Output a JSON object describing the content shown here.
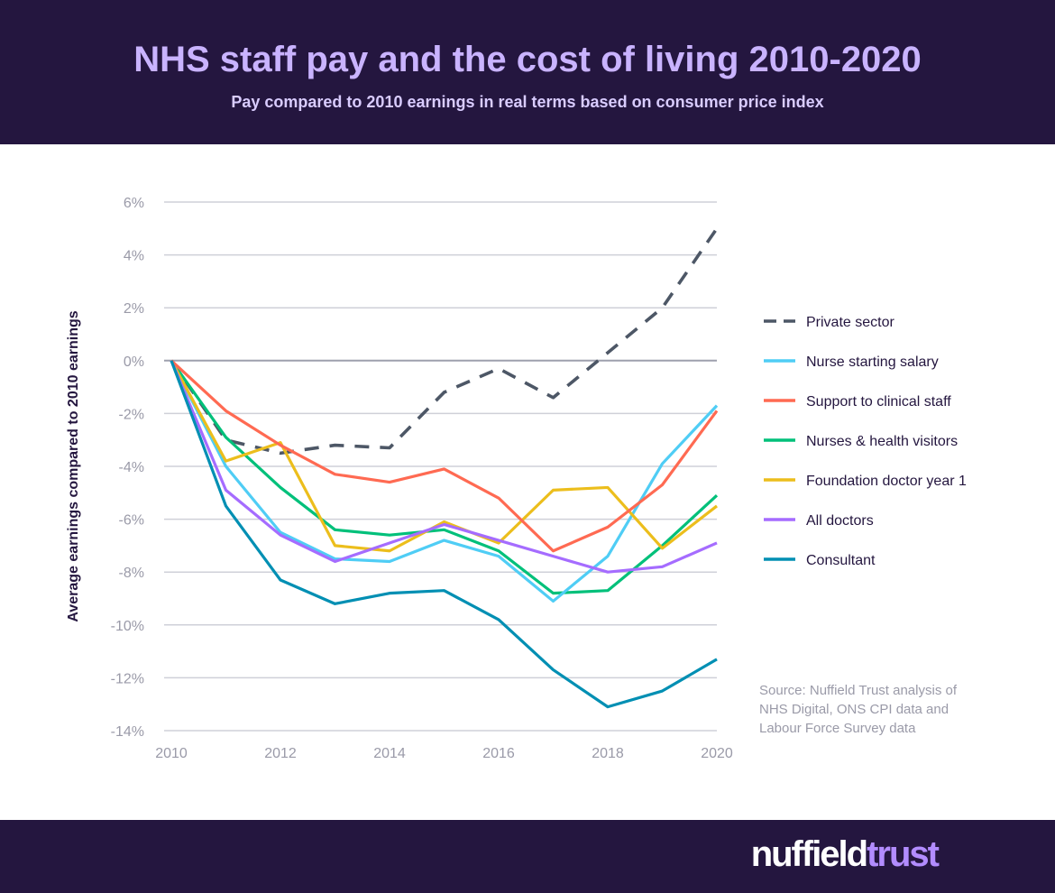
{
  "header": {
    "title": "NHS staff pay and the cost of living 2010-2020",
    "subtitle": "Pay compared to 2010 earnings in real terms based on consumer price index"
  },
  "footer": {
    "logo_part1": "nuffield",
    "logo_part2": "trust"
  },
  "chart_data": {
    "type": "line",
    "title": "NHS staff pay and the cost of living 2010-2020",
    "subtitle": "Pay compared to 2010 earnings in real terms based on consumer price index",
    "xlabel": "",
    "ylabel": "Average earnings compared to 2010 earnings",
    "x": [
      2010,
      2011,
      2012,
      2013,
      2014,
      2015,
      2016,
      2017,
      2018,
      2019,
      2020
    ],
    "xticks": [
      "2010",
      "2012",
      "2014",
      "2016",
      "2018",
      "2020"
    ],
    "ylim": [
      -14,
      6
    ],
    "yticks": [
      "6%",
      "4%",
      "2%",
      "0%",
      "-2%",
      "-4%",
      "-6%",
      "-8%",
      "-10%",
      "-12%",
      "-14%"
    ],
    "grid": true,
    "legend_position": "right",
    "series": [
      {
        "name": "Private sector",
        "color": "#4d5766",
        "dashed": true,
        "values": [
          0,
          -3.0,
          -3.5,
          -3.2,
          -3.3,
          -1.2,
          -0.3,
          -1.4,
          0.3,
          2.0,
          5.0
        ]
      },
      {
        "name": "Nurse starting salary",
        "color": "#4fcdf5",
        "values": [
          0,
          -4.0,
          -6.5,
          -7.5,
          -7.6,
          -6.8,
          -7.4,
          -9.1,
          -7.4,
          -3.9,
          -1.7
        ]
      },
      {
        "name": "Support to clinical staff",
        "color": "#ff6a52",
        "values": [
          0,
          -1.9,
          -3.2,
          -4.3,
          -4.6,
          -4.1,
          -5.2,
          -7.2,
          -6.3,
          -4.7,
          -1.9
        ]
      },
      {
        "name": "Nurses & health visitors",
        "color": "#00c07a",
        "values": [
          0,
          -2.9,
          -4.8,
          -6.4,
          -6.6,
          -6.4,
          -7.2,
          -8.8,
          -8.7,
          -7.0,
          -5.1
        ]
      },
      {
        "name": "Foundation doctor year 1",
        "color": "#ecbe1c",
        "values": [
          0,
          -3.8,
          -3.1,
          -7.0,
          -7.2,
          -6.1,
          -6.9,
          -4.9,
          -4.8,
          -7.1,
          -5.5
        ]
      },
      {
        "name": "All doctors",
        "color": "#a56cff",
        "values": [
          0,
          -4.9,
          -6.6,
          -7.6,
          -6.9,
          -6.2,
          -6.8,
          -7.4,
          -8.0,
          -7.8,
          -6.9
        ]
      },
      {
        "name": "Consultant",
        "color": "#008fb3",
        "values": [
          0,
          -5.5,
          -8.3,
          -9.2,
          -8.8,
          -8.7,
          -9.8,
          -11.7,
          -13.1,
          -12.5,
          -11.3
        ]
      }
    ],
    "source": [
      "Source: Nuffield Trust analysis of",
      "NHS Digital, ONS CPI data and",
      "Labour Force Survey data"
    ]
  }
}
